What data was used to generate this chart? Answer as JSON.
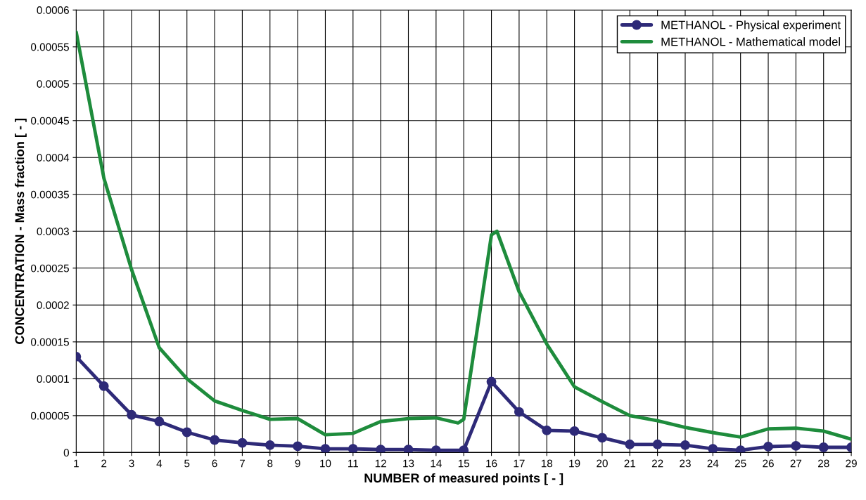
{
  "chart_data": {
    "type": "line",
    "xlabel": "NUMBER of measured points [ - ]",
    "ylabel": "CONCENTRATION - Mass fraction [ - ]",
    "xlim": [
      1,
      29
    ],
    "xticks": [
      1,
      2,
      3,
      4,
      5,
      6,
      7,
      8,
      9,
      10,
      11,
      12,
      13,
      14,
      15,
      16,
      17,
      18,
      19,
      20,
      21,
      22,
      23,
      24,
      25,
      26,
      27,
      28,
      29
    ],
    "ylim": [
      0,
      0.0006
    ],
    "yticks": [
      0,
      {
        "value": 5e-05,
        "label": "0.00005"
      },
      {
        "value": 0.0001,
        "label": "0.0001"
      },
      {
        "value": 0.00015,
        "label": "0.00015"
      },
      {
        "value": 0.0002,
        "label": "0.0002"
      },
      {
        "value": 0.00025,
        "label": "0.00025"
      },
      {
        "value": 0.0003,
        "label": "0.0003"
      },
      {
        "value": 0.00035,
        "label": "0.00035"
      },
      {
        "value": 0.0004,
        "label": "0.0004"
      },
      {
        "value": 0.00045,
        "label": "0.00045"
      },
      {
        "value": 0.0005,
        "label": "0.0005"
      },
      {
        "value": 0.00055,
        "label": "0.00055"
      },
      {
        "value": 0.0006,
        "label": "0.0006"
      }
    ],
    "grid": true,
    "legend": "top right",
    "line_style": "solid",
    "series": [
      {
        "name": "METHANOL - Physical experiment",
        "color": "#2e2a78",
        "marker": "circle",
        "x": [
          1,
          2,
          3,
          4,
          5,
          6,
          7,
          8,
          9,
          10,
          11,
          12,
          13,
          14,
          15,
          16,
          17,
          18,
          19,
          20,
          21,
          22,
          23,
          24,
          25,
          26,
          27,
          28,
          29
        ],
        "values": [
          0.00013,
          9e-05,
          5.1e-05,
          4.2e-05,
          2.75e-05,
          1.7e-05,
          1.3e-05,
          1e-05,
          8.5e-06,
          5e-06,
          5e-06,
          4e-06,
          4e-06,
          3e-06,
          3e-06,
          9.6e-05,
          5.5e-05,
          3e-05,
          2.9e-05,
          2e-05,
          1.1e-05,
          1.1e-05,
          1e-05,
          5e-06,
          3e-06,
          8e-06,
          9e-06,
          7e-06,
          7e-06
        ]
      },
      {
        "name": "METHANOL - Mathematical model",
        "color": "#1e8c3c",
        "marker": "none",
        "x": [
          1,
          2,
          3,
          4,
          5,
          6,
          7,
          8,
          9,
          10,
          11,
          12,
          13,
          14,
          14.8,
          15,
          16,
          16.2,
          17,
          18,
          19,
          20,
          21,
          22,
          23,
          24,
          25,
          26,
          27,
          28,
          29
        ],
        "values": [
          0.00057,
          0.000372,
          0.000248,
          0.000142,
          0.0001,
          7e-05,
          5.7e-05,
          4.5e-05,
          4.6e-05,
          2.4e-05,
          2.6e-05,
          4.2e-05,
          4.6e-05,
          4.7e-05,
          4e-05,
          4.5e-05,
          0.000295,
          0.0003,
          0.000218,
          0.000147,
          8.9e-05,
          6.9e-05,
          5e-05,
          4.3e-05,
          3.4e-05,
          2.7e-05,
          2.1e-05,
          3.2e-05,
          3.3e-05,
          2.9e-05,
          1.8e-05
        ]
      }
    ]
  }
}
